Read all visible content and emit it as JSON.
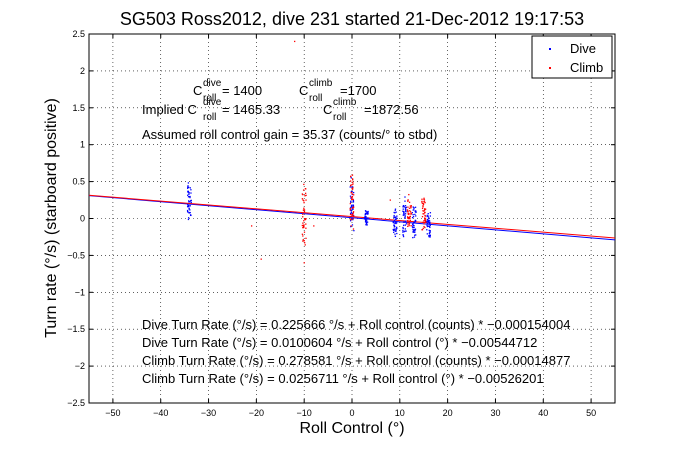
{
  "chart_data": {
    "type": "scatter",
    "title": "SG503 Ross2012, dive 231 started 21-Dec-2012 19:17:53",
    "xlabel": "Roll Control (°)",
    "ylabel": "Turn rate (°/s) (starboard positive)",
    "xlim": [
      -55,
      55
    ],
    "ylim": [
      -2.5,
      2.5
    ],
    "xticks": [
      -50,
      -40,
      -30,
      -20,
      -10,
      0,
      10,
      20,
      30,
      40,
      50
    ],
    "yticks": [
      -2.5,
      -2,
      -1.5,
      -1,
      -0.5,
      0,
      0.5,
      1,
      1.5,
      2,
      2.5
    ],
    "grid": true,
    "legend_position": "top-right",
    "series": [
      {
        "name": "Dive",
        "color": "#0000ff",
        "marker": "point",
        "clusters": [
          {
            "x": -34,
            "y_min": -0.1,
            "y_max": 0.55
          },
          {
            "x": 0,
            "y_min": -0.25,
            "y_max": 0.6
          },
          {
            "x": 3,
            "y_min": -0.1,
            "y_max": 0.15
          },
          {
            "x": 9,
            "y_min": -0.3,
            "y_max": 0.15
          },
          {
            "x": 11,
            "y_min": -0.3,
            "y_max": 0.35
          },
          {
            "x": 13,
            "y_min": -0.3,
            "y_max": 0.2
          },
          {
            "x": 16,
            "y_min": -0.3,
            "y_max": 0.1
          }
        ]
      },
      {
        "name": "Climb",
        "color": "#ff0000",
        "marker": "point",
        "clusters": [
          {
            "x": 0,
            "y_min": -0.25,
            "y_max": 0.8
          },
          {
            "x": -10,
            "y_min": -0.4,
            "y_max": 0.5
          },
          {
            "x": 12,
            "y_min": -0.2,
            "y_max": 0.35
          },
          {
            "x": 15,
            "y_min": -0.2,
            "y_max": 0.35
          }
        ],
        "outliers": [
          {
            "x": -12,
            "y": 2.4
          },
          {
            "x": -21,
            "y": -0.1
          },
          {
            "x": -19,
            "y": -0.55
          },
          {
            "x": -10,
            "y": -0.3
          },
          {
            "x": -10,
            "y": -0.6
          },
          {
            "x": -8,
            "y": -0.1
          },
          {
            "x": 8,
            "y": 0.25
          }
        ]
      }
    ],
    "fit_lines": [
      {
        "series": "Dive",
        "color": "#0000ff",
        "slope": -0.00544712,
        "intercept": 0.0100604
      },
      {
        "series": "Climb",
        "color": "#ff0000",
        "slope": -0.00526201,
        "intercept": 0.0256711
      }
    ],
    "annotations": {
      "c_dive_prefix": "C",
      "c_dive_sup": "dive",
      "c_dive_sub": "roll",
      "c_dive_val": " = 1400",
      "c_climb_prefix": "C",
      "c_climb_sup": "climb",
      "c_climb_sub": "roll",
      "c_climb_val": " =1700",
      "implied_prefix": "Implied C",
      "implied_dive_sup": "dive",
      "implied_dive_sub": "roll",
      "implied_dive_val": " = 1465.33",
      "implied_climb_prefix": "C",
      "implied_climb_sup": "climb",
      "implied_climb_sub": "roll",
      "implied_climb_val": " =1872.56",
      "gain": "Assumed roll control gain = 35.37 (counts/° to stbd)",
      "eq1": "Dive Turn Rate (°/s) = 0.225666 °/s + Roll control (counts) * −0.000154004",
      "eq2": "Dive Turn Rate (°/s) = 0.0100604 °/s + Roll control (°) * −0.00544712",
      "eq3": "Climb Turn Rate (°/s) = 0.278581 °/s + Roll control (counts) * −0.00014877",
      "eq4": "Climb Turn Rate (°/s) = 0.0256711 °/s + Roll control (°) * −0.00526201"
    }
  }
}
